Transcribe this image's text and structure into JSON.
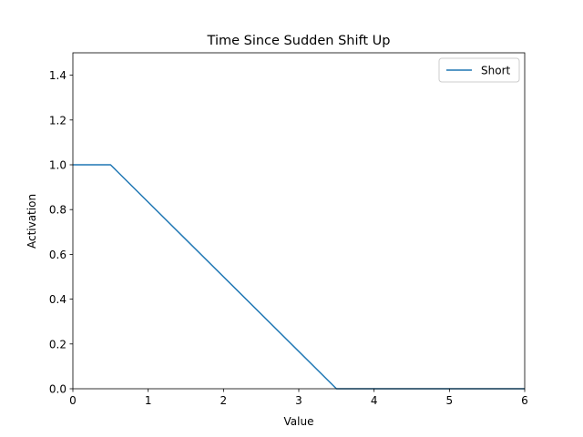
{
  "chart_data": {
    "type": "line",
    "title": "Time Since Sudden Shift Up",
    "xlabel": "Value",
    "ylabel": "Activation",
    "xlim": [
      0,
      6
    ],
    "ylim": [
      0,
      1.5
    ],
    "x_ticks": [
      "0",
      "1",
      "2",
      "3",
      "4",
      "5",
      "6"
    ],
    "y_ticks": [
      "0.0",
      "0.2",
      "0.4",
      "0.6",
      "0.8",
      "1.0",
      "1.2",
      "1.4"
    ],
    "grid": false,
    "legend_position": "top-right",
    "series": [
      {
        "name": "Short",
        "color": "#1f77b4",
        "x": [
          0,
          0.5,
          3.5,
          6
        ],
        "y": [
          1,
          1,
          0,
          0
        ]
      }
    ]
  }
}
